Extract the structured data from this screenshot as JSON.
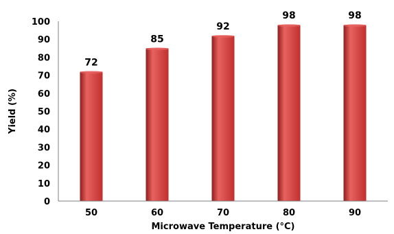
{
  "chart_data": {
    "type": "bar",
    "categories": [
      "50",
      "60",
      "70",
      "80",
      "90"
    ],
    "values": [
      72,
      85,
      92,
      98,
      98
    ],
    "data_labels": [
      "72",
      "85",
      "92",
      "98",
      "98"
    ],
    "xlabel": "Microwave Temperature (°C)",
    "ylabel": "Yield (%)",
    "ylim": [
      0,
      100
    ],
    "yticks": [
      0,
      10,
      20,
      30,
      40,
      50,
      60,
      70,
      80,
      90,
      100
    ],
    "grid": false,
    "bar_color": "#c0302f",
    "bar_highlight": "#e8625f",
    "bar_shadow": "#8f1d1d"
  }
}
